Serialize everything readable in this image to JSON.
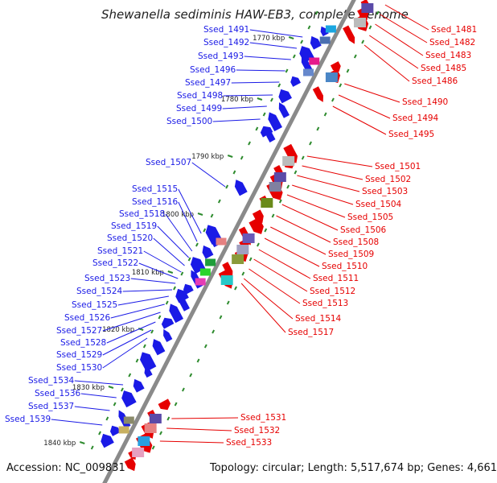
{
  "title": "Shewanella sediminis HAW-EB3, complete genome",
  "footer": {
    "accession": "Accession: NC_009831",
    "topology": "Topology: circular; Length: 5,517,674 bp; Genes: 4,661"
  },
  "colors": {
    "left_strand": "#1a1ae6",
    "right_strand": "#e60000",
    "backbone": "#8a8a8a"
  },
  "kbp_marks": [
    "1770 kbp",
    "1780 kbp",
    "1790 kbp",
    "1800 kbp",
    "1810 kbp",
    "1820 kbp",
    "1830 kbp",
    "1840 kbp"
  ],
  "left_labels": [
    "Ssed_1491",
    "Ssed_1492",
    "Ssed_1493",
    "Ssed_1496",
    "Ssed_1497",
    "Ssed_1498",
    "Ssed_1499",
    "Ssed_1500",
    "Ssed_1507",
    "Ssed_1515",
    "Ssed_1516",
    "Ssed_1518",
    "Ssed_1519",
    "Ssed_1520",
    "Ssed_1521",
    "Ssed_1522",
    "Ssed_1523",
    "Ssed_1524",
    "Ssed_1525",
    "Ssed_1526",
    "Ssed_1527",
    "Ssed_1528",
    "Ssed_1529",
    "Ssed_1530",
    "Ssed_1534",
    "Ssed_1536",
    "Ssed_1537",
    "Ssed_1539"
  ],
  "right_labels": [
    "Ssed_1481",
    "Ssed_1482",
    "Ssed_1483",
    "Ssed_1485",
    "Ssed_1486",
    "Ssed_1490",
    "Ssed_1494",
    "Ssed_1495",
    "Ssed_1501",
    "Ssed_1502",
    "Ssed_1503",
    "Ssed_1504",
    "Ssed_1505",
    "Ssed_1506",
    "Ssed_1508",
    "Ssed_1509",
    "Ssed_1510",
    "Ssed_1511",
    "Ssed_1512",
    "Ssed_1513",
    "Ssed_1514",
    "Ssed_1517",
    "Ssed_1531",
    "Ssed_1532",
    "Ssed_1533"
  ]
}
